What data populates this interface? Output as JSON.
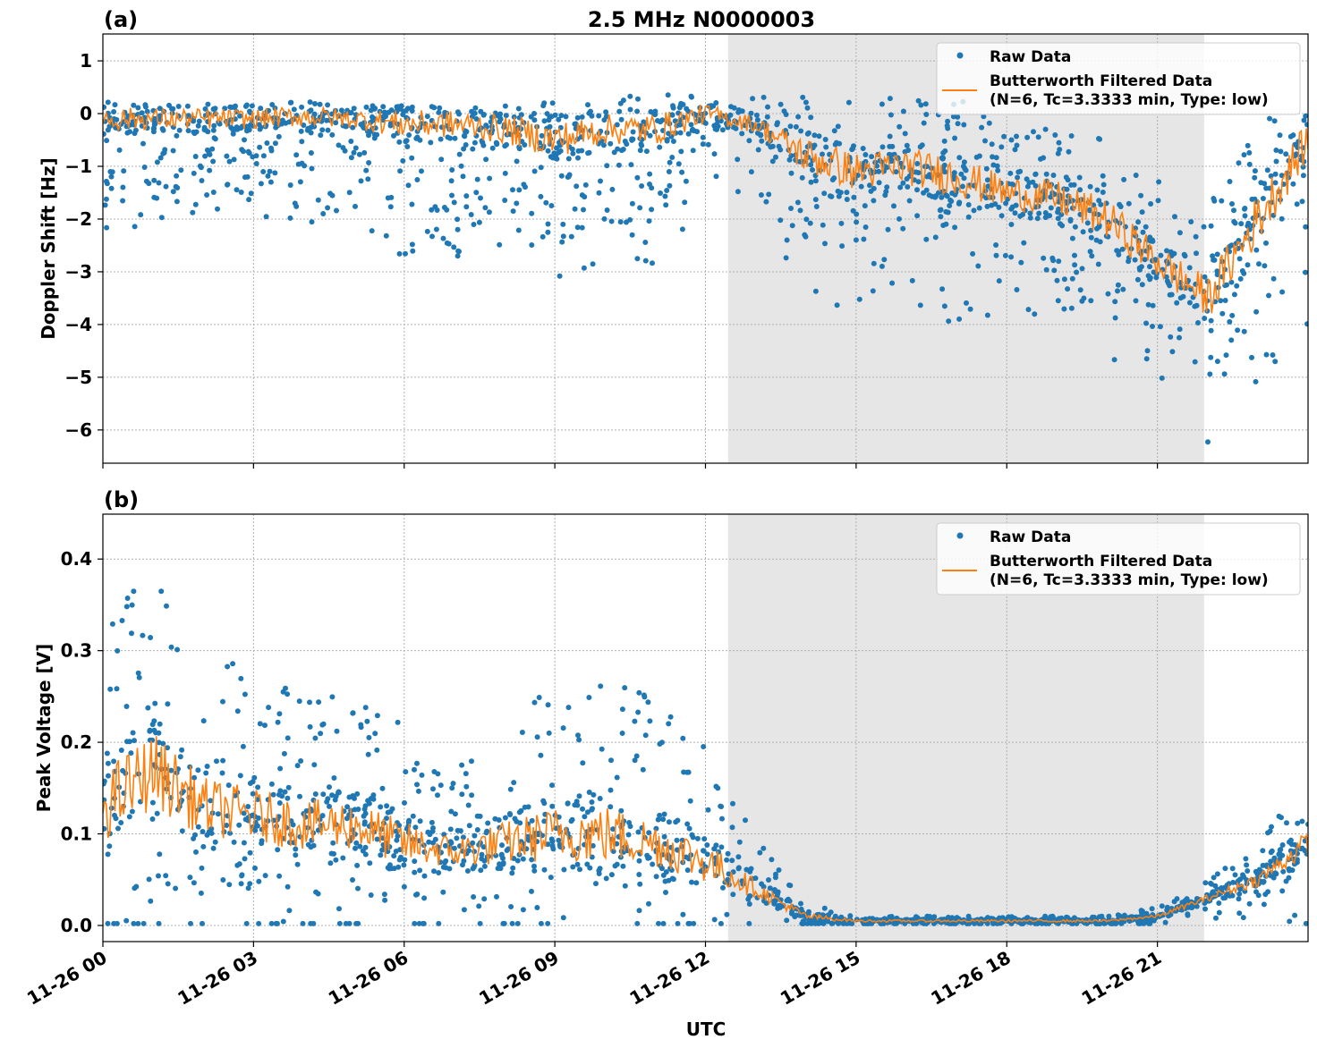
{
  "title": "2.5 MHz N0000003",
  "chart_data": [
    {
      "type": "scatter",
      "panel_label": "(a)",
      "ylabel": "Doppler Shift [Hz]",
      "xlabel": "",
      "ylim": [
        -6.63,
        1.51
      ],
      "yticks": [
        "1",
        "0",
        "−1",
        "−2",
        "−3",
        "−4",
        "−5",
        "−6"
      ],
      "ytick_values": [
        1,
        0,
        -1,
        -2,
        -3,
        -4,
        -5,
        -6
      ],
      "xlim_hours": [
        0,
        24
      ],
      "shaded_region_hours": [
        12.45,
        21.93
      ],
      "shade_color": "#e6e6e6",
      "grid": true,
      "legend_placement": "top-right",
      "series": [
        {
          "name": "Raw Data",
          "color": "#1f77b4",
          "hours": [
            0,
            1,
            2,
            3,
            4,
            5,
            6,
            7,
            8,
            9,
            10,
            11,
            12,
            13,
            14,
            15,
            16,
            17,
            18,
            19,
            20,
            21,
            22,
            23,
            24
          ],
          "lower": [
            -1.8,
            -1.5,
            -1.5,
            -1.3,
            -1.5,
            -1.4,
            -2.0,
            -2.0,
            -2.0,
            -2.5,
            -2.0,
            -2.0,
            -1.0,
            -1.0,
            -2.5,
            -2.6,
            -2.5,
            -2.8,
            -2.8,
            -3.0,
            -3.5,
            -4.0,
            -5.0,
            -4.0,
            -3.0
          ],
          "upper": [
            0.1,
            0.1,
            0.1,
            0.2,
            0.1,
            0.1,
            0.1,
            0.1,
            0.2,
            0.2,
            0.3,
            0.4,
            0.5,
            0.3,
            0.4,
            0.3,
            0.3,
            0.3,
            -0.2,
            -0.3,
            -0.5,
            -1.2,
            -1.8,
            0.0,
            0.0
          ]
        },
        {
          "name": "Butterworth Filtered Data",
          "name2": "(N=6, Tc=3.3333 min, Type: low)",
          "color": "#ff7f0e",
          "hours": [
            0,
            1,
            2,
            3,
            4,
            5,
            6,
            7,
            8,
            9,
            10,
            11,
            12,
            13,
            14,
            15,
            16,
            17,
            18,
            19,
            20,
            21,
            22,
            23,
            24
          ],
          "values": [
            -0.1,
            -0.1,
            -0.1,
            -0.1,
            -0.05,
            -0.1,
            -0.2,
            -0.2,
            -0.3,
            -0.5,
            -0.3,
            -0.3,
            0.0,
            -0.2,
            -0.8,
            -1.1,
            -1.0,
            -1.2,
            -1.5,
            -1.6,
            -2.0,
            -2.8,
            -3.5,
            -2.0,
            -0.5
          ]
        }
      ]
    },
    {
      "type": "scatter",
      "panel_label": "(b)",
      "ylabel": "Peak Voltage [V]",
      "xlabel": "UTC",
      "ylim": [
        -0.0176,
        0.449
      ],
      "yticks": [
        "0.0",
        "0.1",
        "0.2",
        "0.3",
        "0.4"
      ],
      "ytick_values": [
        0,
        0.1,
        0.2,
        0.3,
        0.4
      ],
      "xlim_hours": [
        0,
        24
      ],
      "xticks": [
        "11-26 00",
        "11-26 03",
        "11-26 06",
        "11-26 09",
        "11-26 12",
        "11-26 15",
        "11-26 18",
        "11-26 21"
      ],
      "xtick_hours": [
        0,
        3,
        6,
        9,
        12,
        15,
        18,
        21
      ],
      "shaded_region_hours": [
        12.45,
        21.93
      ],
      "shade_color": "#e6e6e6",
      "grid": true,
      "legend_placement": "top-right",
      "series": [
        {
          "name": "Raw Data",
          "color": "#1f77b4",
          "hours": [
            0,
            1,
            2,
            3,
            4,
            5,
            6,
            7,
            8,
            9,
            10,
            11,
            12,
            13,
            14,
            15,
            16,
            17,
            18,
            19,
            20,
            21,
            22,
            23,
            24
          ],
          "lower": [
            0.03,
            0.04,
            0.04,
            0.04,
            0.04,
            0.03,
            0.03,
            0.03,
            0.03,
            0.04,
            0.04,
            0.04,
            0.03,
            0.02,
            0.0,
            0.0,
            0.0,
            0.0,
            0.0,
            0.0,
            0.0,
            0.005,
            0.02,
            0.03,
            0.04
          ],
          "upper": [
            0.35,
            0.38,
            0.3,
            0.28,
            0.26,
            0.25,
            0.22,
            0.17,
            0.22,
            0.28,
            0.3,
            0.25,
            0.22,
            0.1,
            0.03,
            0.01,
            0.01,
            0.01,
            0.01,
            0.01,
            0.01,
            0.02,
            0.05,
            0.09,
            0.16
          ]
        },
        {
          "name": "Butterworth Filtered Data",
          "name2": "(N=6, Tc=3.3333 min, Type: low)",
          "color": "#ff7f0e",
          "hours": [
            0,
            1,
            2,
            3,
            4,
            5,
            6,
            7,
            8,
            9,
            10,
            11,
            12,
            13,
            14,
            15,
            16,
            17,
            18,
            19,
            20,
            21,
            22,
            23,
            24
          ],
          "values": [
            0.13,
            0.17,
            0.13,
            0.12,
            0.11,
            0.11,
            0.09,
            0.08,
            0.09,
            0.1,
            0.1,
            0.09,
            0.07,
            0.04,
            0.01,
            0.005,
            0.005,
            0.005,
            0.005,
            0.005,
            0.005,
            0.01,
            0.03,
            0.05,
            0.09
          ]
        }
      ]
    }
  ]
}
